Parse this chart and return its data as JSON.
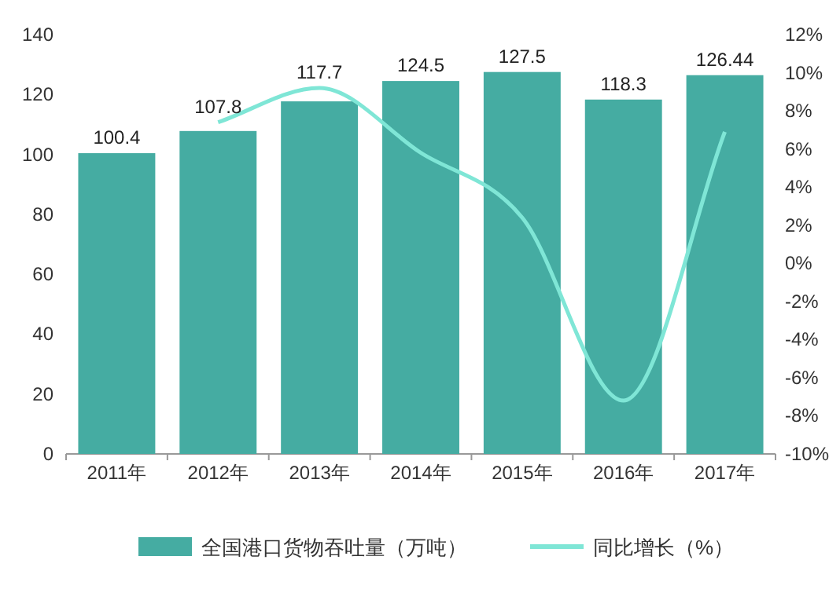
{
  "chart_data": {
    "type": "bar",
    "categories": [
      "2011年",
      "2012年",
      "2013年",
      "2014年",
      "2015年",
      "2016年",
      "2017年"
    ],
    "series": [
      {
        "name": "全国港口货物吞吐量（万吨）",
        "color": "#45aca2",
        "values": [
          100.4,
          107.8,
          117.7,
          124.5,
          127.5,
          118.3,
          126.44
        ],
        "value_labels": [
          "100.4",
          "107.8",
          "117.7",
          "124.5",
          "127.5",
          "118.3",
          "126.44"
        ]
      },
      {
        "name": "同比增长（%）",
        "type": "line",
        "axis": "y2",
        "color": "#7fe6d6",
        "values": [
          null,
          7.4,
          9.2,
          5.8,
          2.4,
          -7.2,
          6.9
        ]
      }
    ],
    "ylim": [
      0,
      140
    ],
    "yticks": [
      0,
      20,
      40,
      60,
      80,
      100,
      120,
      140
    ],
    "y2lim": [
      -10,
      12
    ],
    "y2ticks": [
      {
        "value": -10,
        "label": "-10%"
      },
      {
        "value": -8,
        "label": "-8%"
      },
      {
        "value": -6,
        "label": "-6%"
      },
      {
        "value": -4,
        "label": "-4%"
      },
      {
        "value": -2,
        "label": "-2%"
      },
      {
        "value": 0,
        "label": "0%"
      },
      {
        "value": 2,
        "label": "2%"
      },
      {
        "value": 4,
        "label": "4%"
      },
      {
        "value": 6,
        "label": "6%"
      },
      {
        "value": 8,
        "label": "8%"
      },
      {
        "value": 10,
        "label": "10%"
      },
      {
        "value": 12,
        "label": "12%"
      }
    ],
    "legend": "bottom",
    "marker": "none",
    "line_style": "solid"
  }
}
